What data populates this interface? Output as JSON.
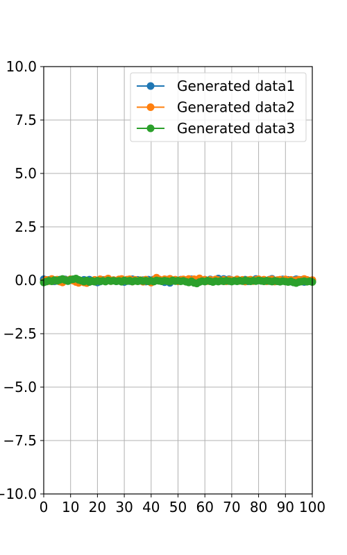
{
  "chart_data": {
    "type": "line",
    "title": "",
    "xlabel": "",
    "ylabel": "",
    "xlim": [
      0,
      100
    ],
    "ylim": [
      -10,
      10
    ],
    "grid": true,
    "legend_position": "top-right",
    "x_ticks": [
      0,
      10,
      20,
      30,
      40,
      50,
      60,
      70,
      80,
      90,
      100
    ],
    "y_ticks": [
      -10,
      -7.5,
      -5,
      -2.5,
      0,
      2.5,
      5,
      7.5,
      10
    ],
    "x_tick_labels": [
      "0",
      "10",
      "20",
      "30",
      "40",
      "50",
      "60",
      "70",
      "80",
      "90",
      "100"
    ],
    "y_tick_labels": [
      "−10.0",
      "−7.5",
      "−5.0",
      "−2.5",
      "0.0",
      "2.5",
      "5.0",
      "7.5",
      "10.0"
    ],
    "series": [
      {
        "name": "Generated data1",
        "color": "#1f77b4",
        "marker": "circle",
        "x": [
          0,
          1,
          2,
          3,
          4,
          5,
          6,
          7,
          8,
          9,
          10,
          11,
          12,
          13,
          14,
          15,
          16,
          17,
          18,
          19,
          20,
          21,
          22,
          23,
          24,
          25,
          26,
          27,
          28,
          29,
          30,
          31,
          32,
          33,
          34,
          35,
          36,
          37,
          38,
          39,
          40,
          41,
          42,
          43,
          44,
          45,
          46,
          47,
          48,
          49,
          50,
          51,
          52,
          53,
          54,
          55,
          56,
          57,
          58,
          59,
          60,
          61,
          62,
          63,
          64,
          65,
          66,
          67,
          68,
          69,
          70,
          71,
          72,
          73,
          74,
          75,
          76,
          77,
          78,
          79,
          80,
          81,
          82,
          83,
          84,
          85,
          86,
          87,
          88,
          89,
          90,
          91,
          92,
          93,
          94,
          95,
          96,
          97,
          98,
          99,
          100
        ],
        "y": [
          0.05,
          -0.03,
          0.02,
          0.04,
          -0.05,
          0.01,
          0.03,
          -0.02,
          0.04,
          -0.01,
          0.02,
          0.05,
          -0.03,
          0.01,
          -0.04,
          0.02,
          -0.02,
          0.03,
          -0.05,
          0.01,
          -0.1,
          -0.06,
          0.02,
          -0.03,
          0.04,
          -0.02,
          0.01,
          -0.05,
          0.03,
          -0.02,
          -0.08,
          0.02,
          -0.04,
          0.05,
          -0.01,
          0.02,
          -0.03,
          0.01,
          -0.06,
          0.03,
          -0.02,
          0.04,
          -0.01,
          0.02,
          -0.05,
          -0.09,
          0.03,
          -0.12,
          0.01,
          0.02,
          -0.04,
          0.03,
          -0.02,
          0.01,
          -0.03,
          0.05,
          -0.01,
          0.02,
          -0.04,
          0.01,
          0.03,
          -0.02,
          0.04,
          -0.05,
          0.02,
          0.08,
          -0.02,
          0.06,
          0.02,
          0.05,
          0.01,
          -0.03,
          0.04,
          -0.02,
          0.01,
          0.03,
          -0.05,
          0.02,
          -0.01,
          0.06,
          0.02,
          -0.03,
          0.01,
          -0.04,
          0.03,
          0.07,
          -0.02,
          0.01,
          -0.03,
          0.04,
          -0.05,
          0.02,
          -0.06,
          0.01,
          0.05,
          -0.03,
          0.02,
          -0.08,
          0.01,
          -0.02,
          -0.05
        ]
      },
      {
        "name": "Generated data2",
        "color": "#ff7f0e",
        "marker": "circle",
        "x": [
          0,
          1,
          2,
          3,
          4,
          5,
          6,
          7,
          8,
          9,
          10,
          11,
          12,
          13,
          14,
          15,
          16,
          17,
          18,
          19,
          20,
          21,
          22,
          23,
          24,
          25,
          26,
          27,
          28,
          29,
          30,
          31,
          32,
          33,
          34,
          35,
          36,
          37,
          38,
          39,
          40,
          41,
          42,
          43,
          44,
          45,
          46,
          47,
          48,
          49,
          50,
          51,
          52,
          53,
          54,
          55,
          56,
          57,
          58,
          59,
          60,
          61,
          62,
          63,
          64,
          65,
          66,
          67,
          68,
          69,
          70,
          71,
          72,
          73,
          74,
          75,
          76,
          77,
          78,
          79,
          80,
          81,
          82,
          83,
          84,
          85,
          86,
          87,
          88,
          89,
          90,
          91,
          92,
          93,
          94,
          95,
          96,
          97,
          98,
          99,
          100
        ],
        "y": [
          -0.08,
          0.02,
          -0.04,
          0.06,
          -0.01,
          0.03,
          -0.06,
          -0.1,
          0.02,
          -0.03,
          0.05,
          -0.02,
          -0.08,
          -0.12,
          -0.05,
          -0.1,
          -0.13,
          -0.07,
          -0.04,
          0.02,
          -0.03,
          0.05,
          -0.02,
          0.03,
          0.08,
          -0.04,
          0.01,
          -0.03,
          0.04,
          0.06,
          -0.02,
          0.03,
          0.05,
          -0.06,
          0.02,
          -0.04,
          0.01,
          -0.07,
          0.03,
          -0.05,
          -0.11,
          0.02,
          0.12,
          0.04,
          -0.03,
          0.05,
          0.01,
          0.07,
          -0.02,
          0.03,
          -0.05,
          0.02,
          0.04,
          -0.03,
          0.06,
          0.01,
          0.05,
          0.02,
          0.09,
          -0.01,
          0.03,
          -0.04,
          0.02,
          -0.06,
          0.04,
          0.01,
          -0.03,
          0.02,
          -0.05,
          0.03,
          0.01,
          -0.02,
          0.04,
          -0.03,
          0.02,
          -0.06,
          0.01,
          0.03,
          -0.04,
          0.02,
          0.05,
          -0.01,
          0.03,
          -0.05,
          0.02,
          0.04,
          -0.06,
          0.01,
          0.03,
          -0.02,
          0.04,
          -0.03,
          0.02,
          -0.05,
          0.01,
          0.03,
          -0.04,
          0.06,
          0.02,
          -0.03,
          0.01
        ]
      },
      {
        "name": "Generated data3",
        "color": "#2ca02c",
        "marker": "circle",
        "x": [
          0,
          1,
          2,
          3,
          4,
          5,
          6,
          7,
          8,
          9,
          10,
          11,
          12,
          13,
          14,
          15,
          16,
          17,
          18,
          19,
          20,
          21,
          22,
          23,
          24,
          25,
          26,
          27,
          28,
          29,
          30,
          31,
          32,
          33,
          34,
          35,
          36,
          37,
          38,
          39,
          40,
          41,
          42,
          43,
          44,
          45,
          46,
          47,
          48,
          49,
          50,
          51,
          52,
          53,
          54,
          55,
          56,
          57,
          58,
          59,
          60,
          61,
          62,
          63,
          64,
          65,
          66,
          67,
          68,
          69,
          70,
          71,
          72,
          73,
          74,
          75,
          76,
          77,
          78,
          79,
          80,
          81,
          82,
          83,
          84,
          85,
          86,
          87,
          88,
          89,
          90,
          91,
          92,
          93,
          94,
          95,
          96,
          97,
          98,
          99,
          100
        ],
        "y": [
          -0.1,
          -0.06,
          -0.02,
          -0.05,
          0.01,
          -0.03,
          0.02,
          0.06,
          0.01,
          -0.04,
          0.03,
          0.05,
          0.08,
          0.02,
          -0.02,
          -0.06,
          -0.01,
          -0.08,
          -0.03,
          -0.07,
          -0.02,
          -0.05,
          -0.03,
          -0.06,
          -0.01,
          -0.04,
          -0.02,
          -0.05,
          -0.03,
          -0.07,
          -0.01,
          -0.04,
          -0.02,
          -0.06,
          -0.03,
          -0.05,
          -0.01,
          -0.04,
          -0.02,
          -0.05,
          -0.03,
          -0.06,
          -0.01,
          -0.03,
          -0.05,
          -0.02,
          -0.04,
          -0.06,
          -0.01,
          -0.04,
          -0.02,
          -0.05,
          -0.03,
          -0.07,
          -0.1,
          -0.05,
          -0.12,
          -0.15,
          -0.08,
          -0.04,
          -0.06,
          -0.02,
          -0.05,
          -0.08,
          -0.04,
          -0.06,
          -0.03,
          -0.05,
          -0.02,
          -0.04,
          -0.06,
          -0.03,
          -0.05,
          -0.02,
          -0.04,
          -0.01,
          -0.03,
          -0.05,
          -0.02,
          -0.04,
          -0.01,
          -0.03,
          -0.05,
          -0.02,
          -0.04,
          -0.06,
          -0.03,
          -0.05,
          -0.07,
          -0.04,
          -0.06,
          -0.08,
          -0.05,
          -0.1,
          -0.13,
          -0.08,
          -0.06,
          -0.04,
          -0.07,
          -0.05,
          -0.08
        ]
      }
    ]
  }
}
